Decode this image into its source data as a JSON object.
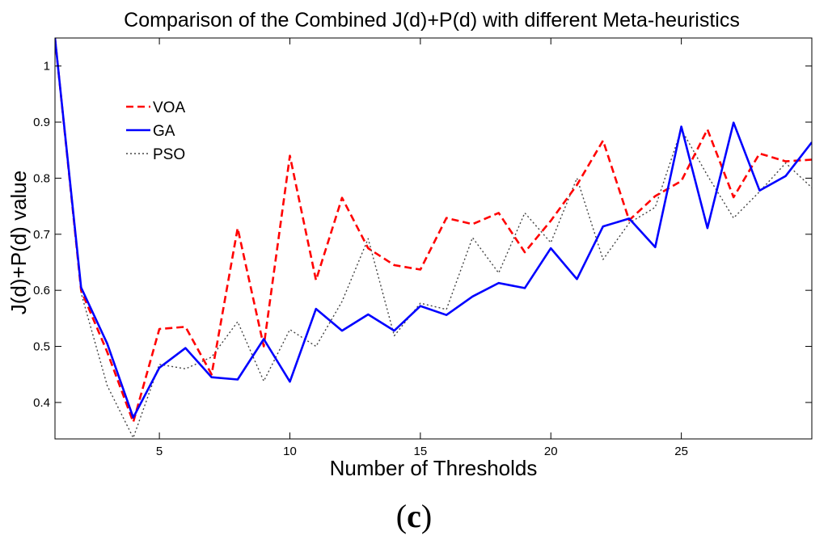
{
  "chart_data": {
    "type": "line",
    "title": "Comparison of the Combined J(d)+P(d) with different Meta-heuristics",
    "xlabel": "Number of Thresholds",
    "ylabel": "J(d)+P(d) value",
    "xlim": [
      1,
      30
    ],
    "ylim": [
      0.335,
      1.05
    ],
    "xticks": [
      5,
      10,
      15,
      20,
      25
    ],
    "yticks": [
      0.4,
      0.5,
      0.6,
      0.7,
      0.8,
      0.9,
      1
    ],
    "grid": false,
    "legend_position": "top-left",
    "x": [
      1,
      2,
      3,
      4,
      5,
      6,
      7,
      8,
      9,
      10,
      11,
      12,
      13,
      14,
      15,
      16,
      17,
      18,
      19,
      20,
      21,
      22,
      23,
      24,
      25,
      26,
      27,
      28,
      29,
      30
    ],
    "series": [
      {
        "name": "VOA",
        "color": "#ff0000",
        "style": "dashed",
        "values": [
          1.05,
          0.6,
          0.49,
          0.365,
          0.531,
          0.535,
          0.45,
          0.711,
          0.5,
          0.84,
          0.618,
          0.765,
          0.675,
          0.645,
          0.637,
          0.729,
          0.718,
          0.738,
          0.668,
          0.724,
          0.788,
          0.867,
          0.725,
          0.768,
          0.795,
          0.887,
          0.766,
          0.844,
          0.83,
          0.833
        ]
      },
      {
        "name": "GA",
        "color": "#0000ff",
        "style": "solid",
        "values": [
          1.05,
          0.605,
          0.505,
          0.373,
          0.462,
          0.497,
          0.445,
          0.441,
          0.513,
          0.437,
          0.567,
          0.528,
          0.557,
          0.528,
          0.572,
          0.556,
          0.589,
          0.613,
          0.604,
          0.675,
          0.62,
          0.714,
          0.728,
          0.677,
          0.892,
          0.711,
          0.899,
          0.778,
          0.804,
          0.864
        ]
      },
      {
        "name": "PSO",
        "color": "#444444",
        "style": "dotted",
        "values": [
          1.05,
          0.595,
          0.43,
          0.337,
          0.468,
          0.46,
          0.481,
          0.544,
          0.438,
          0.53,
          0.5,
          0.58,
          0.692,
          0.519,
          0.577,
          0.566,
          0.694,
          0.631,
          0.738,
          0.685,
          0.8,
          0.655,
          0.72,
          0.748,
          0.887,
          0.805,
          0.729,
          0.776,
          0.827,
          0.783
        ]
      }
    ]
  },
  "panel_label": {
    "open": "(",
    "letter": "c",
    "close": ")"
  }
}
